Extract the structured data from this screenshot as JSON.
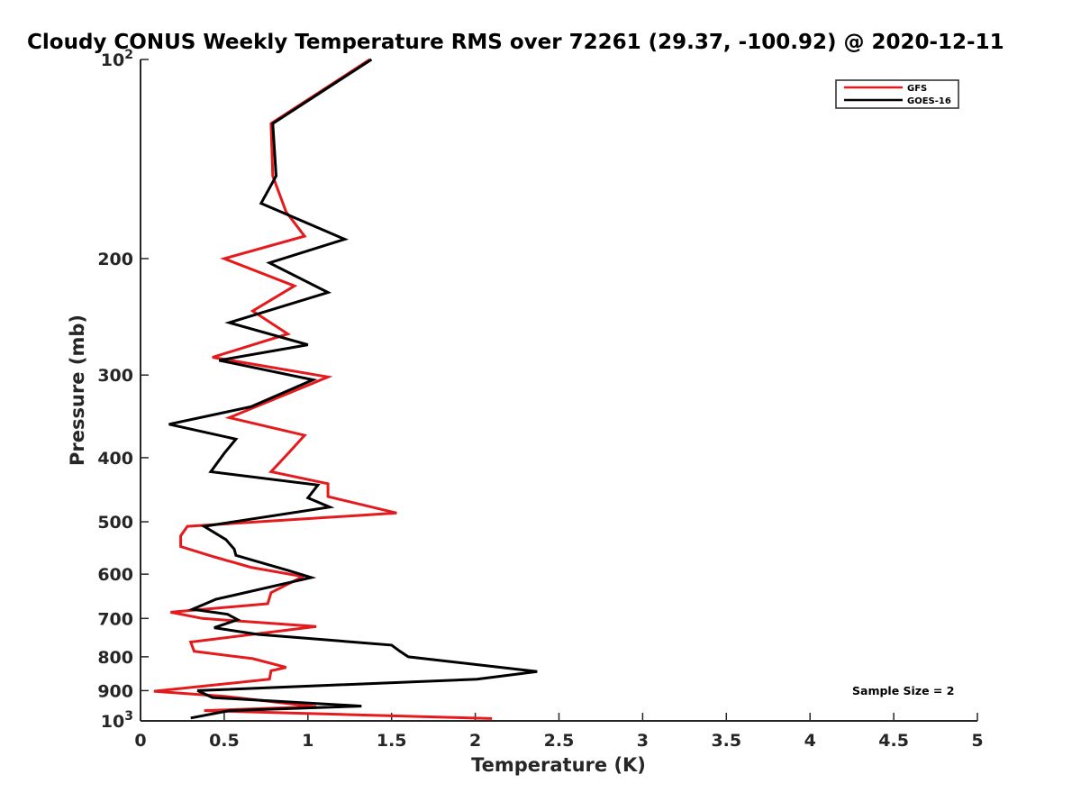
{
  "chart_data": {
    "type": "line",
    "title": "Cloudy CONUS Weekly Temperature RMS over 72261 (29.37, -100.92) @ 2020-12-11",
    "xlabel": "Temperature (K)",
    "ylabel": "Pressure (mb)",
    "xlim": [
      0,
      5
    ],
    "ylim": [
      100,
      1000
    ],
    "yscale": "log",
    "yreverse": true,
    "grid": false,
    "legend_position": "top-right",
    "xticks": [
      {
        "value": 0,
        "label": "0"
      },
      {
        "value": 0.5,
        "label": "0.5"
      },
      {
        "value": 1,
        "label": "1"
      },
      {
        "value": 1.5,
        "label": "1.5"
      },
      {
        "value": 2,
        "label": "2"
      },
      {
        "value": 2.5,
        "label": "2.5"
      },
      {
        "value": 3,
        "label": "3"
      },
      {
        "value": 3.5,
        "label": "3.5"
      },
      {
        "value": 4,
        "label": "4"
      },
      {
        "value": 4.5,
        "label": "4.5"
      },
      {
        "value": 5,
        "label": "5"
      }
    ],
    "yticks": [
      {
        "value": 100,
        "base": "10",
        "exp": "2"
      },
      {
        "value": 200,
        "base": "200",
        "exp": ""
      },
      {
        "value": 300,
        "base": "300",
        "exp": ""
      },
      {
        "value": 400,
        "base": "400",
        "exp": ""
      },
      {
        "value": 500,
        "base": "500",
        "exp": ""
      },
      {
        "value": 600,
        "base": "600",
        "exp": ""
      },
      {
        "value": 700,
        "base": "700",
        "exp": ""
      },
      {
        "value": 800,
        "base": "800",
        "exp": ""
      },
      {
        "value": 900,
        "base": "900",
        "exp": ""
      },
      {
        "value": 1000,
        "base": "10",
        "exp": "3"
      }
    ],
    "annotation": "Sample Size = 2",
    "series": [
      {
        "name": "GFS",
        "color": "#e41a1c",
        "points": [
          [
            1.37,
            100
          ],
          [
            0.78,
            125
          ],
          [
            0.79,
            150
          ],
          [
            0.87,
            170
          ],
          [
            0.98,
            185
          ],
          [
            0.5,
            200
          ],
          [
            0.92,
            220
          ],
          [
            0.67,
            240
          ],
          [
            0.88,
            260
          ],
          [
            0.43,
            282
          ],
          [
            1.12,
            302
          ],
          [
            0.53,
            348
          ],
          [
            0.98,
            370
          ],
          [
            0.89,
            392
          ],
          [
            0.78,
            420
          ],
          [
            1.12,
            438
          ],
          [
            1.12,
            458
          ],
          [
            1.53,
            485
          ],
          [
            0.28,
            508
          ],
          [
            0.24,
            525
          ],
          [
            0.24,
            545
          ],
          [
            0.44,
            565
          ],
          [
            0.66,
            586
          ],
          [
            0.97,
            605
          ],
          [
            0.78,
            640
          ],
          [
            0.76,
            665
          ],
          [
            0.18,
            685
          ],
          [
            0.37,
            700
          ],
          [
            1.05,
            720
          ],
          [
            0.3,
            760
          ],
          [
            0.32,
            785
          ],
          [
            0.67,
            805
          ],
          [
            0.87,
            830
          ],
          [
            0.78,
            840
          ],
          [
            0.77,
            865
          ],
          [
            0.08,
            902
          ],
          [
            0.5,
            918
          ],
          [
            1.05,
            952
          ],
          [
            0.38,
            965
          ],
          [
            2.1,
            992
          ]
        ]
      },
      {
        "name": "GOES-16",
        "color": "#000000",
        "points": [
          [
            1.38,
            100
          ],
          [
            0.79,
            125
          ],
          [
            0.81,
            150
          ],
          [
            0.72,
            165
          ],
          [
            1.22,
            187
          ],
          [
            0.77,
            203
          ],
          [
            1.12,
            225
          ],
          [
            0.53,
            250
          ],
          [
            1.0,
            270
          ],
          [
            0.47,
            285
          ],
          [
            1.03,
            305
          ],
          [
            0.66,
            335
          ],
          [
            0.17,
            356
          ],
          [
            0.57,
            375
          ],
          [
            0.5,
            394
          ],
          [
            0.42,
            420
          ],
          [
            1.06,
            440
          ],
          [
            1.0,
            460
          ],
          [
            1.13,
            475
          ],
          [
            0.38,
            508
          ],
          [
            0.51,
            532
          ],
          [
            0.56,
            550
          ],
          [
            0.57,
            562
          ],
          [
            0.88,
            592
          ],
          [
            1.02,
            607
          ],
          [
            0.45,
            655
          ],
          [
            0.31,
            678
          ],
          [
            0.52,
            690
          ],
          [
            0.58,
            703
          ],
          [
            0.44,
            723
          ],
          [
            0.7,
            740
          ],
          [
            1.5,
            768
          ],
          [
            1.55,
            785
          ],
          [
            1.6,
            800
          ],
          [
            2.37,
            842
          ],
          [
            2.01,
            865
          ],
          [
            0.34,
            900
          ],
          [
            0.43,
            922
          ],
          [
            1.32,
            950
          ],
          [
            0.53,
            965
          ],
          [
            0.3,
            990
          ]
        ]
      }
    ]
  }
}
